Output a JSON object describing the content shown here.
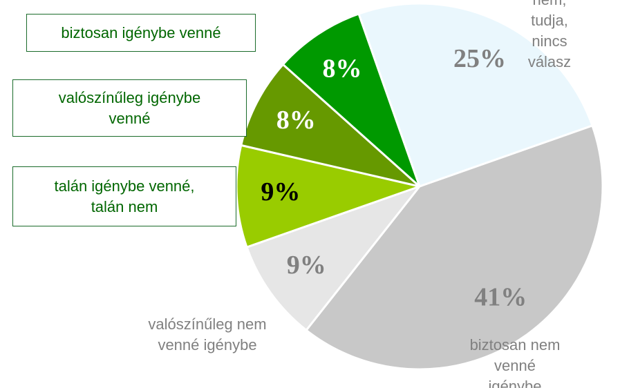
{
  "chart_data": {
    "type": "pie",
    "categories": [
      "nem, tudja,\nnincs válasz",
      "biztosan nem venné\nigénybe",
      "valószínűleg nem\nvenné igénybe",
      "talán igénybe venné,\ntalán nem",
      "valószínűleg igénybe\nvenné",
      "biztosan igénybe venné"
    ],
    "values": [
      25,
      41,
      9,
      9,
      8,
      8
    ],
    "value_labels": [
      "25%",
      "41%",
      "9%",
      "9%",
      "8%",
      "8%"
    ],
    "colors": [
      "#eaf7fd",
      "#c8c8c8",
      "#e6e6e6",
      "#99cc00",
      "#669900",
      "#009900"
    ],
    "label_colors": [
      "#808080",
      "#808080",
      "#808080",
      "#000000",
      "#ffffff",
      "#ffffff"
    ]
  }
}
